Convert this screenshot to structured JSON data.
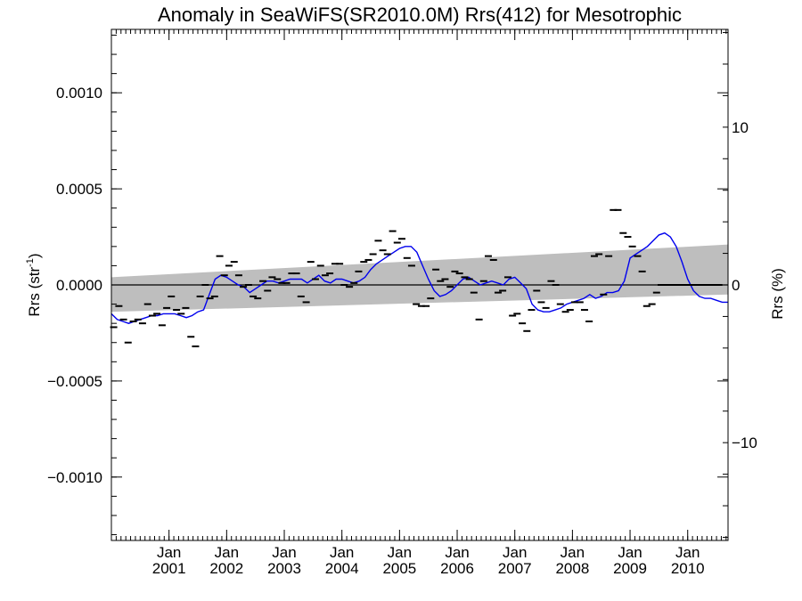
{
  "chart_data": {
    "type": "scatter",
    "title": "Anomaly in SeaWiFS(SR2010.0M) Rrs(412) for Mesotrophic",
    "ylabel": "Rrs (str",
    "ylabel_sup": "-1",
    "ylabel_close": ")",
    "y2label": "Rrs (%)",
    "ylim": [
      -0.00133,
      0.00133
    ],
    "y2lim": [
      -16.2,
      16.2
    ],
    "xlim": [
      2000.0,
      2010.7
    ],
    "yticks": [
      {
        "value": 0.001,
        "label": "0.0010"
      },
      {
        "value": 0.0005,
        "label": "0.0005"
      },
      {
        "value": 0.0,
        "label": "0.0000"
      },
      {
        "value": -0.0005,
        "label": "−0.0005"
      },
      {
        "value": -0.001,
        "label": "−0.0010"
      }
    ],
    "y2ticks": [
      {
        "value": 10,
        "label": "10"
      },
      {
        "value": 0,
        "label": "0"
      },
      {
        "value": -10,
        "label": "−10"
      }
    ],
    "xticks": [
      {
        "value": 2001.0,
        "month": "Jan",
        "year": "2001"
      },
      {
        "value": 2002.0,
        "month": "Jan",
        "year": "2002"
      },
      {
        "value": 2003.0,
        "month": "Jan",
        "year": "2003"
      },
      {
        "value": 2004.0,
        "month": "Jan",
        "year": "2004"
      },
      {
        "value": 2005.0,
        "month": "Jan",
        "year": "2005"
      },
      {
        "value": 2006.0,
        "month": "Jan",
        "year": "2006"
      },
      {
        "value": 2007.0,
        "month": "Jan",
        "year": "2007"
      },
      {
        "value": 2008.0,
        "month": "Jan",
        "year": "2008"
      },
      {
        "value": 2009.0,
        "month": "Jan",
        "year": "2009"
      },
      {
        "value": 2010.0,
        "month": "Jan",
        "year": "2010"
      }
    ],
    "band": {
      "x": [
        2000.0,
        2010.7
      ],
      "upper": [
        4e-05,
        0.00021
      ],
      "lower": [
        -0.00014,
        -5e-05
      ],
      "color": "#bebebe"
    },
    "zero_line": 0.0,
    "series": [
      {
        "kind": "points",
        "color": "#000000",
        "x": [
          2000.04,
          2000.13,
          2000.21,
          2000.29,
          2000.38,
          2000.46,
          2000.54,
          2000.63,
          2000.71,
          2000.79,
          2000.88,
          2000.96,
          2001.04,
          2001.13,
          2001.21,
          2001.29,
          2001.38,
          2001.46,
          2001.54,
          2001.63,
          2001.71,
          2001.79,
          2001.88,
          2001.96,
          2002.04,
          2002.13,
          2002.21,
          2002.29,
          2002.38,
          2002.46,
          2002.54,
          2002.63,
          2002.71,
          2002.79,
          2002.88,
          2002.96,
          2003.04,
          2003.13,
          2003.21,
          2003.29,
          2003.38,
          2003.46,
          2003.54,
          2003.63,
          2003.71,
          2003.79,
          2003.88,
          2003.96,
          2004.04,
          2004.13,
          2004.21,
          2004.29,
          2004.38,
          2004.46,
          2004.54,
          2004.63,
          2004.71,
          2004.79,
          2004.88,
          2004.96,
          2005.04,
          2005.13,
          2005.21,
          2005.29,
          2005.38,
          2005.46,
          2005.54,
          2005.63,
          2005.71,
          2005.79,
          2005.88,
          2005.96,
          2006.04,
          2006.13,
          2006.21,
          2006.29,
          2006.38,
          2006.46,
          2006.54,
          2006.63,
          2006.71,
          2006.79,
          2006.88,
          2006.96,
          2007.04,
          2007.13,
          2007.21,
          2007.29,
          2007.38,
          2007.46,
          2007.54,
          2007.63,
          2007.71,
          2007.79,
          2007.88,
          2007.96,
          2008.04,
          2008.13,
          2008.21,
          2008.29,
          2008.38,
          2008.46,
          2008.54,
          2008.63,
          2008.71,
          2008.79,
          2008.88,
          2008.96,
          2009.04,
          2009.13,
          2009.21,
          2009.29,
          2009.38,
          2009.46,
          2009.54,
          2009.63,
          2009.71,
          2009.79,
          2009.88,
          2009.96,
          2010.04,
          2010.13,
          2010.21,
          2010.29,
          2010.38,
          2010.46,
          2010.54,
          2010.63
        ],
        "values": [
          -0.00022,
          -0.00011,
          -0.00018,
          -0.0003,
          -0.00019,
          -0.00018,
          -0.0002,
          -0.0001,
          -0.00016,
          -0.00015,
          -0.00021,
          -0.00012,
          -6e-05,
          -0.00013,
          -0.00015,
          -0.00012,
          -0.00027,
          -0.00032,
          -6e-05,
          0.0,
          -7e-05,
          -6e-05,
          0.00015,
          5e-05,
          0.0001,
          0.00012,
          5e-05,
          -1e-05,
          0.0,
          -6e-05,
          -7e-05,
          2e-05,
          -3e-05,
          4e-05,
          3e-05,
          1e-05,
          1e-05,
          6e-05,
          6e-05,
          -6e-05,
          -9e-05,
          0.00012,
          3e-05,
          0.0001,
          5e-05,
          6e-05,
          0.00011,
          0.00011,
          0.0,
          -1e-05,
          1e-05,
          7e-05,
          0.00012,
          0.00013,
          0.00016,
          0.00023,
          0.00018,
          0.00016,
          0.00028,
          0.00022,
          0.00024,
          0.00014,
          0.0001,
          -0.0001,
          -0.00011,
          -0.00011,
          -7e-05,
          8e-05,
          2e-05,
          3e-05,
          -1e-05,
          7e-05,
          6e-05,
          4e-05,
          3e-05,
          -4e-05,
          -0.00018,
          2e-05,
          0.00015,
          0.00013,
          -4e-05,
          -3e-05,
          4e-05,
          -0.00016,
          -0.00015,
          -0.0002,
          -0.00024,
          -0.00013,
          -3e-05,
          -9e-05,
          -0.00012,
          2e-05,
          0.0,
          -0.0001,
          -0.00014,
          -0.00013,
          -9e-05,
          -9e-05,
          -0.00013,
          -0.00019,
          0.00015,
          0.00016,
          -5e-05,
          0.00015,
          0.00039,
          0.00039,
          0.00027,
          0.00025,
          0.0002,
          0.00015,
          7e-05,
          -0.00011,
          -0.0001,
          -4e-05,
          0.0,
          0.0,
          0.0,
          0.0,
          0.0,
          0.0,
          0.0,
          0.0,
          0.0,
          0.0,
          0.0,
          0.0,
          0.0,
          0.0
        ]
      },
      {
        "kind": "line",
        "color": "#0000ee",
        "x": [
          2000.0,
          2000.1,
          2000.2,
          2000.3,
          2000.4,
          2000.5,
          2000.6,
          2000.7,
          2000.8,
          2000.9,
          2001.0,
          2001.1,
          2001.2,
          2001.3,
          2001.4,
          2001.5,
          2001.6,
          2001.7,
          2001.8,
          2001.9,
          2002.0,
          2002.1,
          2002.2,
          2002.3,
          2002.4,
          2002.5,
          2002.6,
          2002.7,
          2002.8,
          2002.9,
          2003.0,
          2003.1,
          2003.2,
          2003.3,
          2003.4,
          2003.5,
          2003.6,
          2003.7,
          2003.8,
          2003.9,
          2004.0,
          2004.1,
          2004.2,
          2004.3,
          2004.4,
          2004.5,
          2004.6,
          2004.7,
          2004.8,
          2004.9,
          2005.0,
          2005.1,
          2005.2,
          2005.3,
          2005.4,
          2005.5,
          2005.6,
          2005.7,
          2005.8,
          2005.9,
          2006.0,
          2006.1,
          2006.2,
          2006.3,
          2006.4,
          2006.5,
          2006.6,
          2006.7,
          2006.8,
          2006.9,
          2007.0,
          2007.1,
          2007.2,
          2007.3,
          2007.4,
          2007.5,
          2007.6,
          2007.7,
          2007.8,
          2007.9,
          2008.0,
          2008.1,
          2008.2,
          2008.3,
          2008.4,
          2008.5,
          2008.6,
          2008.7,
          2008.8,
          2008.9,
          2009.0,
          2009.1,
          2009.2,
          2009.3,
          2009.4,
          2009.5,
          2009.6,
          2009.7,
          2009.8,
          2009.9,
          2010.0,
          2010.1,
          2010.2,
          2010.3,
          2010.4,
          2010.5,
          2010.6,
          2010.7
        ],
        "values": [
          -0.00015,
          -0.00018,
          -0.00019,
          -0.0002,
          -0.00019,
          -0.00018,
          -0.00017,
          -0.00016,
          -0.00016,
          -0.00015,
          -0.00015,
          -0.00015,
          -0.00016,
          -0.00017,
          -0.00016,
          -0.00014,
          -0.00013,
          -5e-05,
          3e-05,
          5e-05,
          4e-05,
          2e-05,
          0.0,
          -1e-05,
          -4e-05,
          -2e-05,
          0.0,
          2e-05,
          2e-05,
          1e-05,
          2e-05,
          3e-05,
          3e-05,
          3e-05,
          1e-05,
          3e-05,
          5e-05,
          2e-05,
          1e-05,
          3e-05,
          3e-05,
          2e-05,
          1e-05,
          2e-05,
          4e-05,
          8e-05,
          0.00011,
          0.00013,
          0.00015,
          0.00017,
          0.00019,
          0.0002,
          0.0002,
          0.00017,
          0.0001,
          3e-05,
          -3e-05,
          -6e-05,
          -5e-05,
          -3e-05,
          0.0,
          3e-05,
          4e-05,
          2e-05,
          0.0,
          1e-05,
          2e-05,
          1e-05,
          0.0,
          3e-05,
          4e-05,
          1e-05,
          -2e-05,
          -0.0001,
          -0.00013,
          -0.00014,
          -0.00014,
          -0.00013,
          -0.00012,
          -0.0001,
          -9e-05,
          -8e-05,
          -7e-05,
          -5e-05,
          -7e-05,
          -6e-05,
          -4e-05,
          -4e-05,
          -3e-05,
          2e-05,
          0.00014,
          0.00016,
          0.00018,
          0.0002,
          0.00023,
          0.00026,
          0.00027,
          0.00025,
          0.0002,
          0.00012,
          3e-05,
          -3e-05,
          -6e-05,
          -7e-05,
          -7e-05,
          -8e-05,
          -9e-05,
          -9e-05
        ]
      }
    ]
  }
}
